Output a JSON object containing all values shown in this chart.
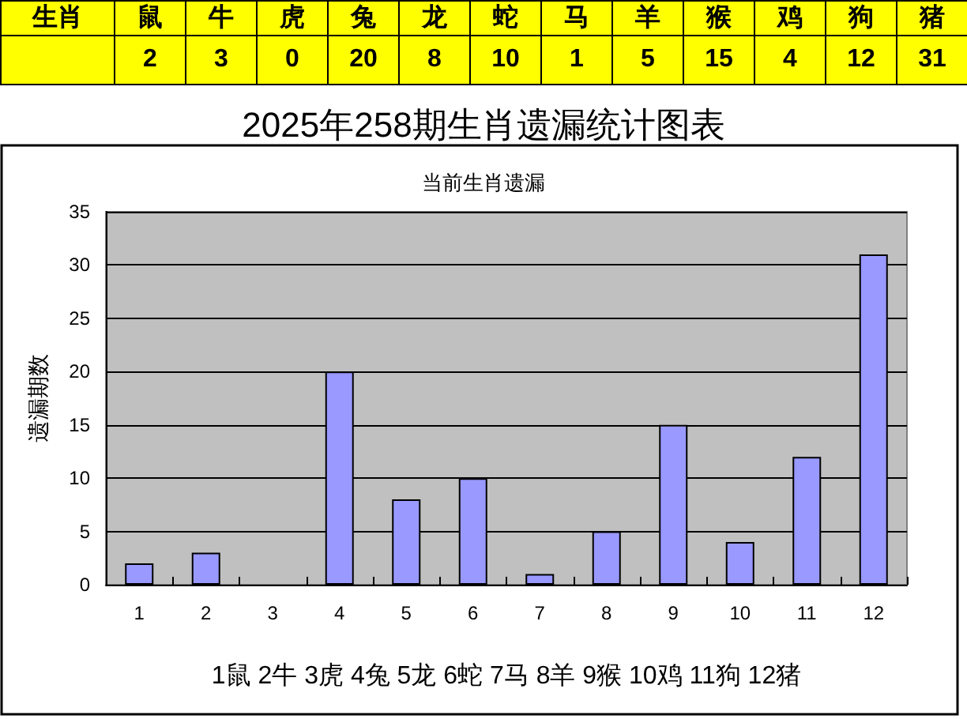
{
  "chart_data": [
    {
      "type": "other",
      "annotations": [
        "生肖"
      ],
      "categories": [
        "鼠",
        "牛",
        "虎",
        "兔",
        "龙",
        "蛇",
        "马",
        "羊",
        "猴",
        "鸡",
        "狗",
        "猪"
      ],
      "values": [
        2,
        3,
        0,
        20,
        8,
        10,
        1,
        5,
        15,
        4,
        12,
        31
      ],
      "data_labels": true
    },
    {
      "type": "bar",
      "title": "2025年258期生肖遗漏统计图表",
      "subtitle": "当前生肖遗漏",
      "xlabel": "1鼠 2牛 3虎 4兔 5龙 6蛇 7马 8羊 9猴 10鸡 11狗 12猪",
      "ylabel": "遗漏期数",
      "categories": [
        "1",
        "2",
        "3",
        "4",
        "5",
        "6",
        "7",
        "8",
        "9",
        "10",
        "11",
        "12"
      ],
      "values": [
        2,
        3,
        0,
        20,
        8,
        10,
        1,
        5,
        15,
        4,
        12,
        31
      ],
      "color": "#9999ff",
      "ylim": [
        0,
        35
      ],
      "yticks": [
        0,
        5,
        10,
        15,
        20,
        25,
        30,
        35
      ],
      "grid": "y"
    }
  ]
}
